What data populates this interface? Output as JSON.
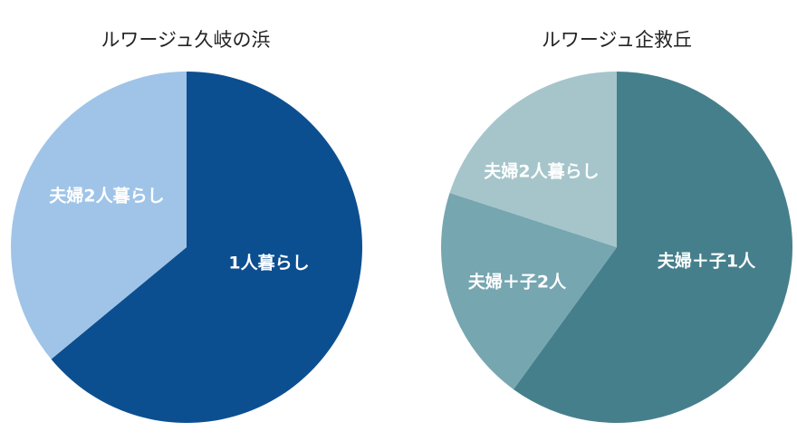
{
  "chart_data": [
    {
      "type": "pie",
      "title": "ルワージュ久岐の浜",
      "slices": [
        {
          "label": "1人暮らし",
          "value": 64,
          "color": "#0c4f91"
        },
        {
          "label": "夫婦2人暮らし",
          "value": 36,
          "color": "#9fc4e8"
        }
      ]
    },
    {
      "type": "pie",
      "title": "ルワージュ企救丘",
      "slices": [
        {
          "label": "夫婦＋子1人",
          "value": 60,
          "color": "#467f8c"
        },
        {
          "label": "夫婦＋子2人",
          "value": 20,
          "color": "#76a6b0"
        },
        {
          "label": "夫婦2人暮らし",
          "value": 20,
          "color": "#a5c5ca"
        }
      ]
    }
  ]
}
